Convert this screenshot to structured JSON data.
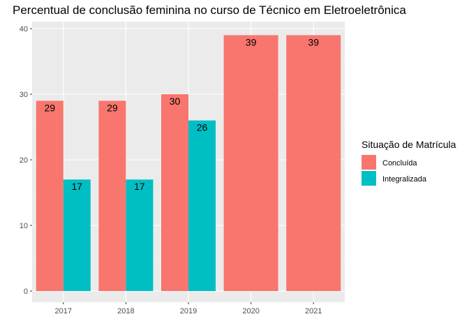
{
  "chart_data": {
    "type": "bar",
    "title": "Percentual de conclusão feminina no curso de Técnico em Eletroeletrônica",
    "xlabel": "",
    "ylabel": "",
    "categories": [
      "2017",
      "2018",
      "2019",
      "2020",
      "2021"
    ],
    "ylim": [
      0,
      40
    ],
    "yticks": [
      0,
      10,
      20,
      30,
      40
    ],
    "grid": true,
    "legend": {
      "title": "Situação de Matrícula",
      "placement": "right"
    },
    "series": [
      {
        "name": "Concluída",
        "color": "#F8766D",
        "values": [
          29,
          29,
          30,
          39,
          39
        ],
        "labels": [
          "29",
          "29",
          "30",
          "39",
          "39"
        ]
      },
      {
        "name": "Integralizada",
        "color": "#00BFC4",
        "values": [
          17,
          17,
          26,
          null,
          null
        ],
        "labels": [
          "17",
          "17",
          "26",
          "",
          ""
        ]
      }
    ],
    "colors": {
      "panel": "#EBEBEB",
      "grid_major": "#FFFFFF",
      "grid_minor": "#F2F2F2"
    }
  }
}
